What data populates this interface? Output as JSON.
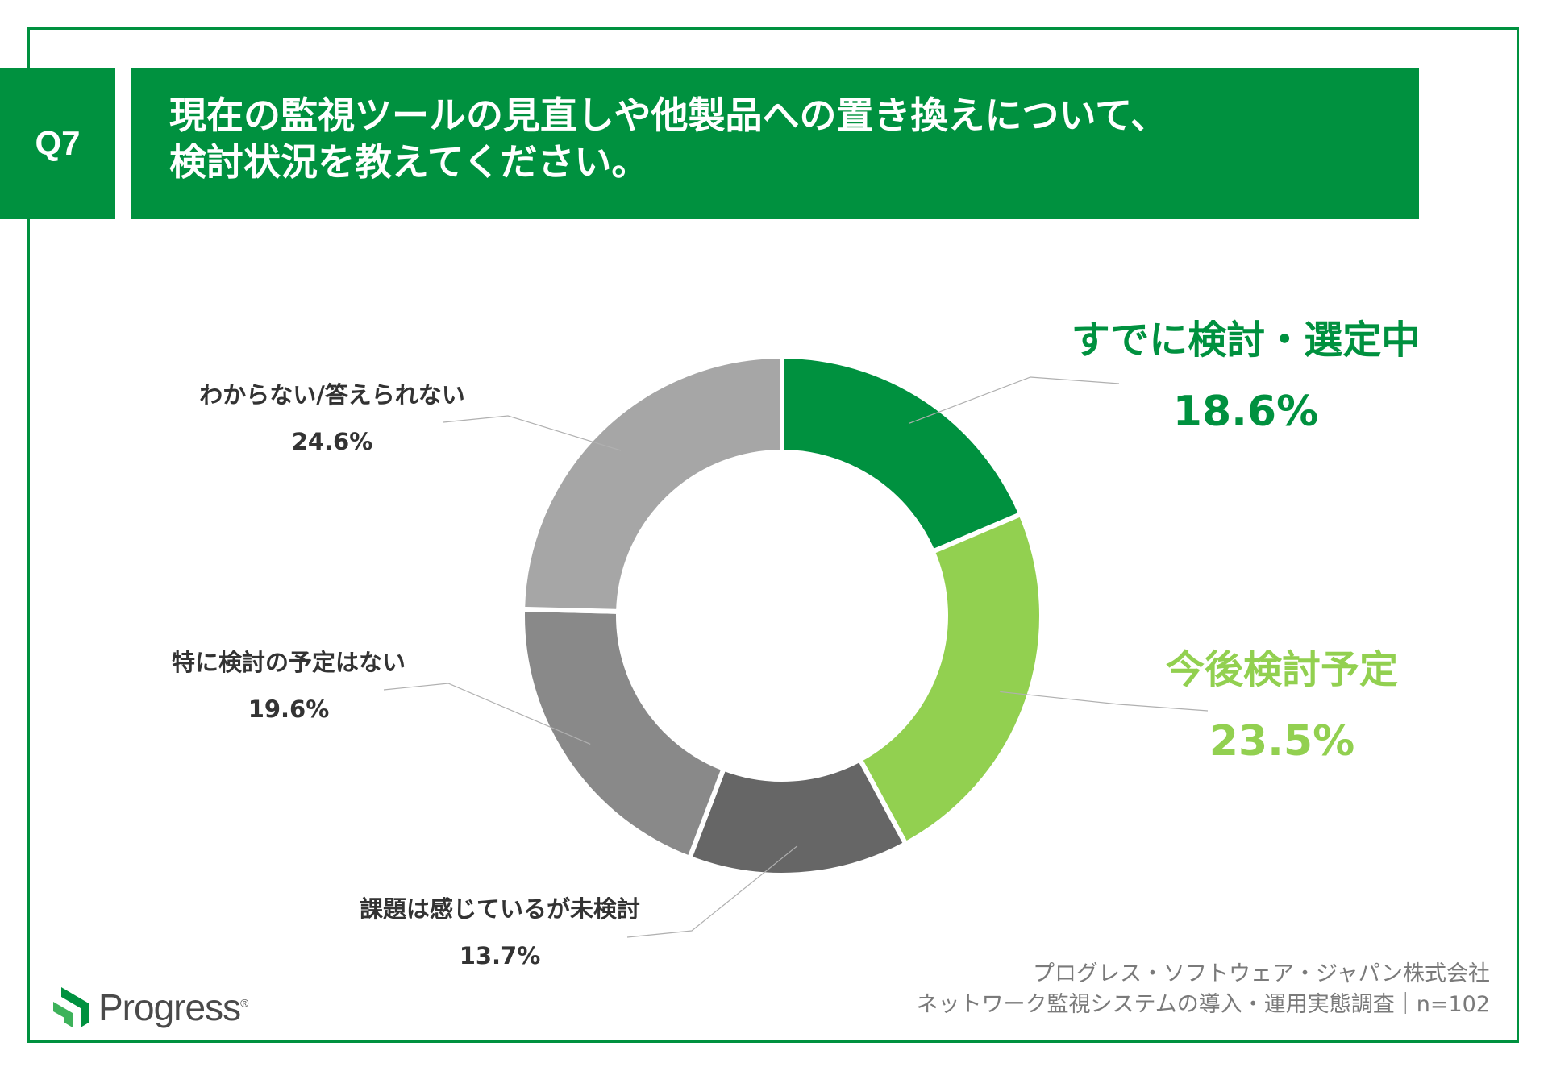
{
  "header": {
    "question_number": "Q7",
    "title_line1": "現在の監視ツールの見直しや他製品への置き換えについて、",
    "title_line2": "検討状況を教えてください。"
  },
  "chart_data": {
    "type": "pie",
    "variant": "donut",
    "start_angle_deg": 0,
    "direction": "clockwise",
    "slices": [
      {
        "label": "すでに検討・選定中",
        "value": 18.6,
        "value_label": "18.6%",
        "color": "#00913f",
        "label_color": "#00913f"
      },
      {
        "label": "今後検討予定",
        "value": 23.5,
        "value_label": "23.5%",
        "color": "#92d050",
        "label_color": "#92d050"
      },
      {
        "label": "課題は感じているが未検討",
        "value": 13.7,
        "value_label": "13.7%",
        "color": "#666666",
        "label_color": "#333333"
      },
      {
        "label": "特に検討の予定はない",
        "value": 19.6,
        "value_label": "19.6%",
        "color": "#898989",
        "label_color": "#333333"
      },
      {
        "label": "わからない/答えられない",
        "value": 24.6,
        "value_label": "24.6%",
        "color": "#a6a6a6",
        "label_color": "#333333"
      }
    ]
  },
  "footer": {
    "company": "プログレス・ソフトウェア・ジャパン株式会社",
    "survey": "ネットワーク監視システムの導入・運用実態調査｜n=102"
  },
  "logo": {
    "text": "Progress",
    "reg": "®",
    "color": "#00913f"
  }
}
